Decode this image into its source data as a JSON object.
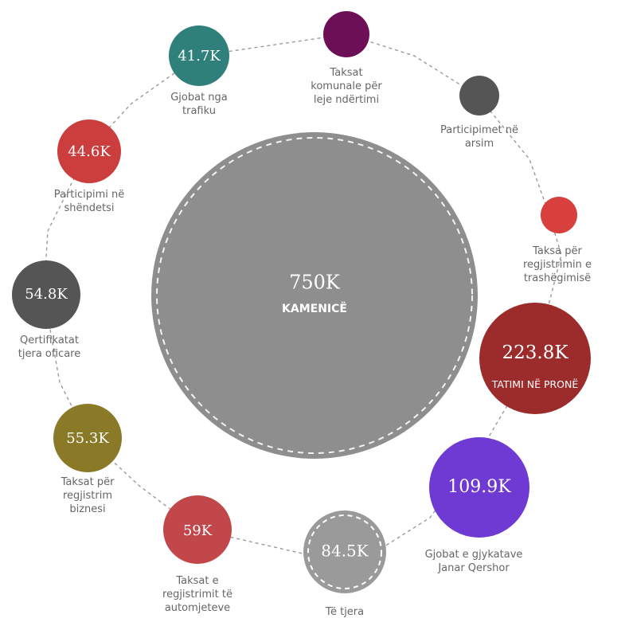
{
  "chart_data": {
    "type": "bubble",
    "center": {
      "value_label": "750K",
      "value": 750000,
      "name": "KAMENICË",
      "color": "#8e8e8e"
    },
    "items": [
      {
        "value_label": "",
        "value": null,
        "name_lines": [
          "Taksat",
          "komunale për",
          "leje ndërtimi"
        ],
        "color": "#6d0f57"
      },
      {
        "value_label": "",
        "value": null,
        "name_lines": [
          "Participimet në",
          "arsim"
        ],
        "color": "#555555"
      },
      {
        "value_label": "",
        "value": null,
        "name_lines": [
          "Taksa për",
          "regjistrimin e",
          "trashëgimisë"
        ],
        "color": "#d8403d"
      },
      {
        "value_label": "223.8K",
        "value": 223800,
        "name_lines": [
          "TATIMI NË PRONË"
        ],
        "color": "#9c2c2b"
      },
      {
        "value_label": "109.9K",
        "value": 109900,
        "name_lines": [
          "Gjobat e gjykatave",
          "Janar Qershor"
        ],
        "color": "#6e3ad3"
      },
      {
        "value_label": "84.5K",
        "value": 84500,
        "name_lines": [
          "Të tjera"
        ],
        "color": "#9a9a9a"
      },
      {
        "value_label": "59K",
        "value": 59000,
        "name_lines": [
          "Taksat e",
          "regjistrimit të",
          "automjeteve"
        ],
        "color": "#c2474b"
      },
      {
        "value_label": "55.3K",
        "value": 55300,
        "name_lines": [
          "Taksat për",
          "regjistrim",
          "biznesi"
        ],
        "color": "#8a7a28"
      },
      {
        "value_label": "54.8K",
        "value": 54800,
        "name_lines": [
          "Qertifikatat",
          "tjera oficare"
        ],
        "color": "#555555"
      },
      {
        "value_label": "44.6K",
        "value": 44600,
        "name_lines": [
          "Participimi në",
          "shëndetsi"
        ],
        "color": "#cc3e3e"
      },
      {
        "value_label": "41.7K",
        "value": 41700,
        "name_lines": [
          "Gjobat nga",
          "trafiku"
        ],
        "color": "#2f7f7a"
      }
    ]
  }
}
